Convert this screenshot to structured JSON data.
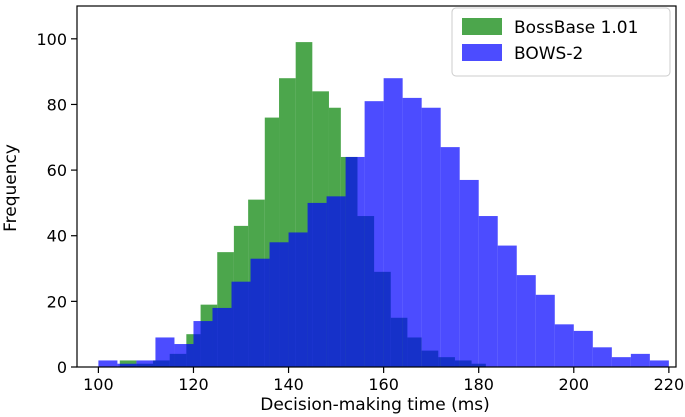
{
  "chart_data": {
    "type": "histogram",
    "xlabel": "Decision-making time (ms)",
    "ylabel": "Frequency",
    "xlim": [
      95.5,
      221.5
    ],
    "ylim": [
      0,
      110
    ],
    "xticks": [
      100,
      120,
      140,
      160,
      180,
      200,
      220
    ],
    "yticks": [
      0,
      20,
      40,
      60,
      80,
      100
    ],
    "grid": false,
    "legend_position": "top-right",
    "series": [
      {
        "name": "BossBase 1.01",
        "color": "#008000",
        "alpha": 0.7,
        "bins": [
          {
            "x0": 104.5,
            "x1": 108.0,
            "count": 2
          },
          {
            "x0": 108.0,
            "x1": 111.5,
            "count": 1
          },
          {
            "x0": 111.5,
            "x1": 115.0,
            "count": 2
          },
          {
            "x0": 115.0,
            "x1": 118.5,
            "count": 4
          },
          {
            "x0": 118.5,
            "x1": 121.5,
            "count": 10
          },
          {
            "x0": 121.5,
            "x1": 125.0,
            "count": 19
          },
          {
            "x0": 125.0,
            "x1": 128.5,
            "count": 35
          },
          {
            "x0": 128.5,
            "x1": 131.5,
            "count": 43
          },
          {
            "x0": 131.5,
            "x1": 135.0,
            "count": 51
          },
          {
            "x0": 135.0,
            "x1": 138.0,
            "count": 76
          },
          {
            "x0": 138.0,
            "x1": 141.5,
            "count": 88
          },
          {
            "x0": 141.5,
            "x1": 145.0,
            "count": 99
          },
          {
            "x0": 145.0,
            "x1": 148.5,
            "count": 84
          },
          {
            "x0": 148.5,
            "x1": 151.0,
            "count": 79
          },
          {
            "x0": 151.0,
            "x1": 154.5,
            "count": 64
          },
          {
            "x0": 154.5,
            "x1": 158.0,
            "count": 46
          },
          {
            "x0": 158.0,
            "x1": 161.5,
            "count": 29
          },
          {
            "x0": 161.5,
            "x1": 165.0,
            "count": 15
          },
          {
            "x0": 165.0,
            "x1": 168.0,
            "count": 9
          },
          {
            "x0": 168.0,
            "x1": 171.5,
            "count": 5
          },
          {
            "x0": 171.5,
            "x1": 175.0,
            "count": 3
          },
          {
            "x0": 175.0,
            "x1": 178.5,
            "count": 2
          },
          {
            "x0": 178.5,
            "x1": 181.5,
            "count": 1
          }
        ]
      },
      {
        "name": "BOWS-2",
        "color": "#0000ff",
        "alpha": 0.7,
        "bins": [
          {
            "x0": 100.0,
            "x1": 104.0,
            "count": 2
          },
          {
            "x0": 104.0,
            "x1": 108.0,
            "count": 1
          },
          {
            "x0": 108.0,
            "x1": 112.0,
            "count": 2
          },
          {
            "x0": 112.0,
            "x1": 116.0,
            "count": 9
          },
          {
            "x0": 116.0,
            "x1": 120.0,
            "count": 7
          },
          {
            "x0": 120.0,
            "x1": 124.0,
            "count": 14
          },
          {
            "x0": 124.0,
            "x1": 128.0,
            "count": 18
          },
          {
            "x0": 128.0,
            "x1": 132.0,
            "count": 26
          },
          {
            "x0": 132.0,
            "x1": 136.0,
            "count": 33
          },
          {
            "x0": 136.0,
            "x1": 140.0,
            "count": 38
          },
          {
            "x0": 140.0,
            "x1": 144.0,
            "count": 41
          },
          {
            "x0": 144.0,
            "x1": 148.0,
            "count": 50
          },
          {
            "x0": 148.0,
            "x1": 152.0,
            "count": 52
          },
          {
            "x0": 152.0,
            "x1": 156.0,
            "count": 64
          },
          {
            "x0": 156.0,
            "x1": 160.0,
            "count": 81
          },
          {
            "x0": 160.0,
            "x1": 164.0,
            "count": 88
          },
          {
            "x0": 164.0,
            "x1": 168.0,
            "count": 82
          },
          {
            "x0": 168.0,
            "x1": 172.0,
            "count": 79
          },
          {
            "x0": 172.0,
            "x1": 176.0,
            "count": 67
          },
          {
            "x0": 176.0,
            "x1": 180.0,
            "count": 57
          },
          {
            "x0": 180.0,
            "x1": 184.0,
            "count": 46
          },
          {
            "x0": 184.0,
            "x1": 188.0,
            "count": 37
          },
          {
            "x0": 188.0,
            "x1": 192.0,
            "count": 28
          },
          {
            "x0": 192.0,
            "x1": 196.0,
            "count": 22
          },
          {
            "x0": 196.0,
            "x1": 200.0,
            "count": 13
          },
          {
            "x0": 200.0,
            "x1": 204.0,
            "count": 11
          },
          {
            "x0": 204.0,
            "x1": 208.0,
            "count": 6
          },
          {
            "x0": 208.0,
            "x1": 212.0,
            "count": 3
          },
          {
            "x0": 212.0,
            "x1": 216.0,
            "count": 4
          },
          {
            "x0": 216.0,
            "x1": 220.0,
            "count": 2
          }
        ]
      }
    ]
  }
}
